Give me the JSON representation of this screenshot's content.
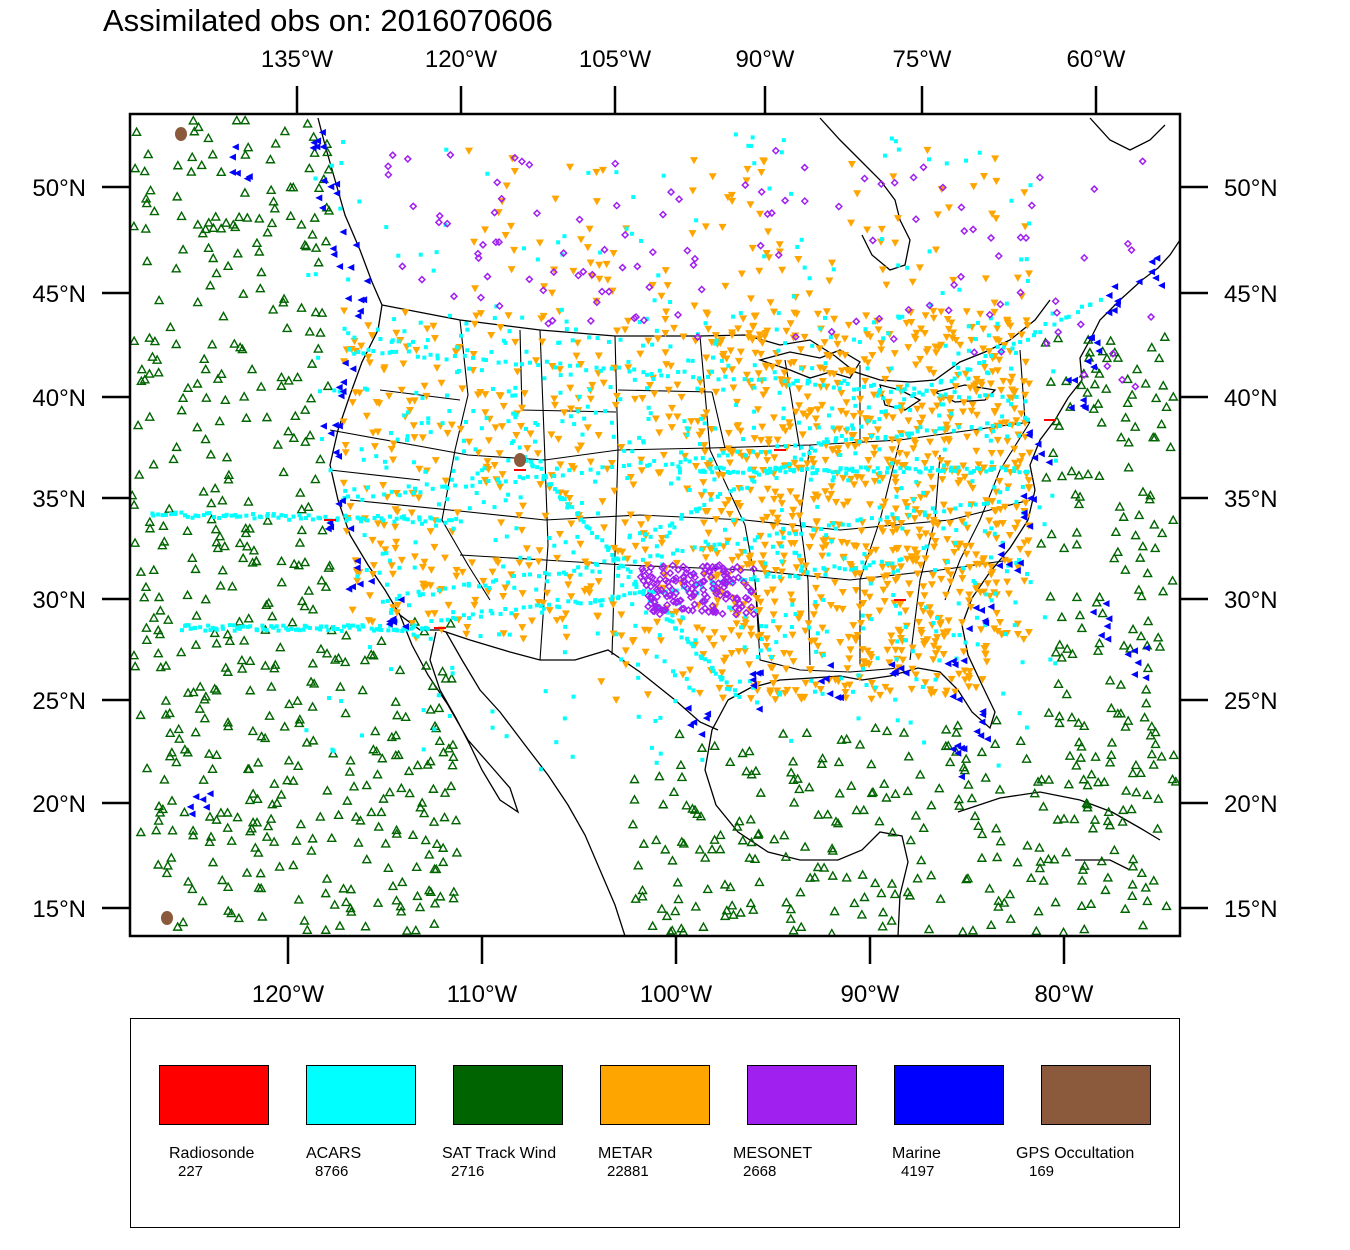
{
  "title": "Assimilated obs on: 2016070606",
  "top_lon_labels": [
    "135°W",
    "120°W",
    "105°W",
    "90°W",
    "75°W",
    "60°W"
  ],
  "bottom_lon_labels": [
    "120°W",
    "110°W",
    "100°W",
    "90°W",
    "80°W"
  ],
  "lat_labels": [
    "50°N",
    "45°N",
    "40°N",
    "35°N",
    "30°N",
    "25°N",
    "20°N",
    "15°N"
  ],
  "legend": [
    {
      "name": "Radiosonde",
      "count": "227",
      "color": "#ff0000"
    },
    {
      "name": "ACARS",
      "count": "8766",
      "color": "#00ffff"
    },
    {
      "name": "SAT Track Wind",
      "count": "2716",
      "color": "#006400"
    },
    {
      "name": "METAR",
      "count": "22881",
      "color": "#ffa500"
    },
    {
      "name": "MESONET",
      "count": "2668",
      "color": "#a020f0"
    },
    {
      "name": "Marine",
      "count": "4197",
      "color": "#0000ff"
    },
    {
      "name": "GPS Occultation",
      "count": "169",
      "color": "#8b5a3c"
    }
  ],
  "map": {
    "projection": "Lambert conformal conic",
    "domain": "CONUS",
    "basemap": [
      "coastlines",
      "country borders",
      "US state boundaries"
    ],
    "observation_markers": {
      "Radiosonde": "red dash",
      "ACARS": "cyan square",
      "SAT Track Wind": "dark green open triangle",
      "METAR": "orange down-pointing triangle",
      "MESONET": "purple diamond",
      "Marine": "blue left-pointing triangle",
      "GPS Occultation": "brown blob"
    }
  }
}
